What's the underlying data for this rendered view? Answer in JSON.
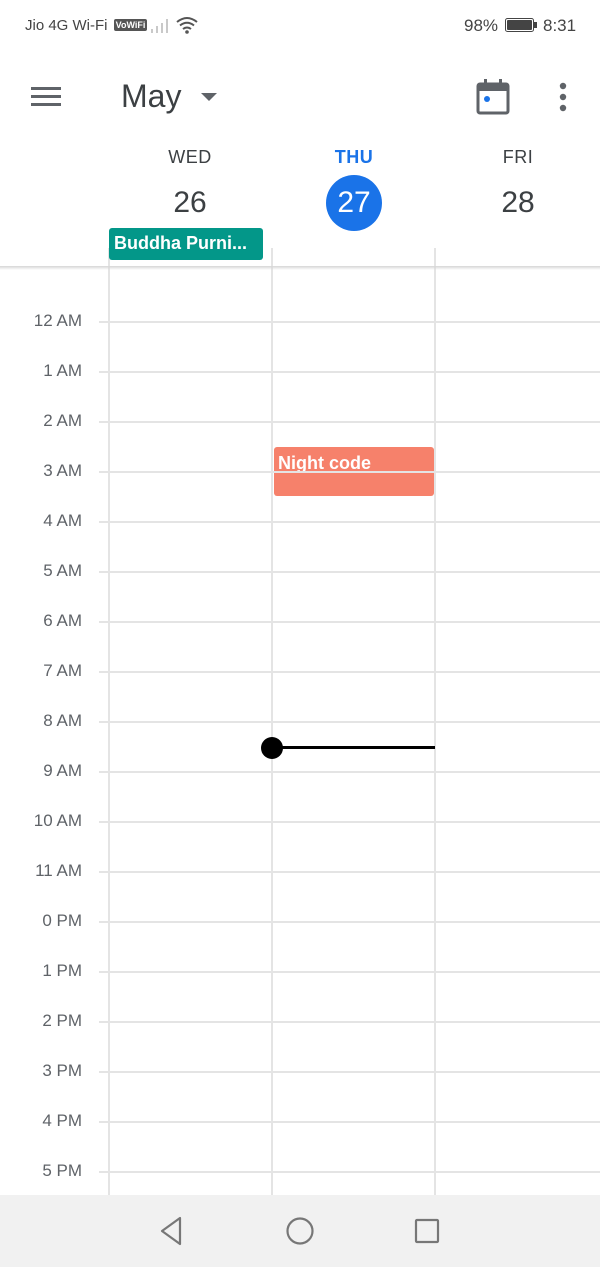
{
  "status_bar": {
    "carrier": "Jio 4G Wi-Fi",
    "vowifi_badge": "VoWiFi",
    "battery_percent": "98%",
    "time": "8:31"
  },
  "app_bar": {
    "menu_icon": "hamburger-menu-icon",
    "month": "May",
    "today_icon": "calendar-today-icon",
    "more_icon": "more-vert-icon"
  },
  "days": [
    {
      "dow": "WED",
      "date": "26",
      "today": false
    },
    {
      "dow": "THU",
      "date": "27",
      "today": true
    },
    {
      "dow": "FRI",
      "date": "28",
      "today": false
    }
  ],
  "all_day_events": [
    {
      "title": "Buddha Purni...",
      "color": "#039789"
    }
  ],
  "hours": [
    "12 AM",
    "1 AM",
    "2 AM",
    "3 AM",
    "4 AM",
    "5 AM",
    "6 AM",
    "7 AM",
    "8 AM",
    "9 AM",
    "10 AM",
    "11 AM",
    "0 PM",
    "1 PM",
    "2 PM",
    "3 PM",
    "4 PM",
    "5 PM"
  ],
  "events": [
    {
      "title": "Night code",
      "color": "#f6816b"
    }
  ],
  "colors": {
    "accent": "#1a73e8",
    "grid": "#e4e4e4"
  },
  "nav_bar": [
    "back-icon",
    "home-icon",
    "recents-icon"
  ]
}
